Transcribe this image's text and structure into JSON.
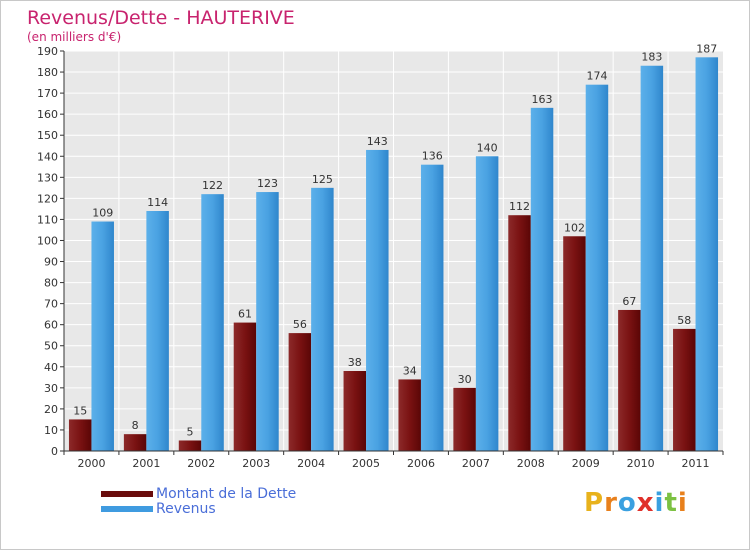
{
  "header": {
    "title": "Revenus/Dette - HAUTERIVE",
    "subtitle": "(en milliers d'€)"
  },
  "legend": {
    "items": [
      {
        "label": "Montant de la Dette",
        "color": "#7a1010"
      },
      {
        "label": "Revenus",
        "color": "#3f9be0"
      }
    ]
  },
  "logo": {
    "letters": [
      "P",
      "r",
      "o",
      "x",
      "i",
      "t",
      "i"
    ],
    "colors": [
      "#e8b21c",
      "#e8801c",
      "#3aa0e0",
      "#e0302a",
      "#3aa0e0",
      "#7cc142",
      "#e8801c"
    ]
  },
  "chart_data": {
    "type": "bar",
    "title": "Revenus/Dette - HAUTERIVE",
    "ylabel": "(en milliers d'€)",
    "xlabel": "",
    "ylim": [
      0,
      190
    ],
    "yticks": [
      0,
      10,
      20,
      30,
      40,
      50,
      60,
      70,
      80,
      90,
      100,
      110,
      120,
      130,
      140,
      150,
      160,
      170,
      180,
      190
    ],
    "grid": true,
    "categories": [
      "2000",
      "2001",
      "2002",
      "2003",
      "2004",
      "2005",
      "2006",
      "2007",
      "2008",
      "2009",
      "2010",
      "2011"
    ],
    "series": [
      {
        "name": "Montant de la Dette",
        "color": "#7a1010",
        "values": [
          15,
          8,
          5,
          61,
          56,
          38,
          34,
          30,
          112,
          102,
          67,
          58
        ]
      },
      {
        "name": "Revenus",
        "color": "#3f9be0",
        "values": [
          109,
          114,
          122,
          123,
          125,
          143,
          136,
          140,
          163,
          174,
          183,
          187
        ]
      }
    ]
  }
}
